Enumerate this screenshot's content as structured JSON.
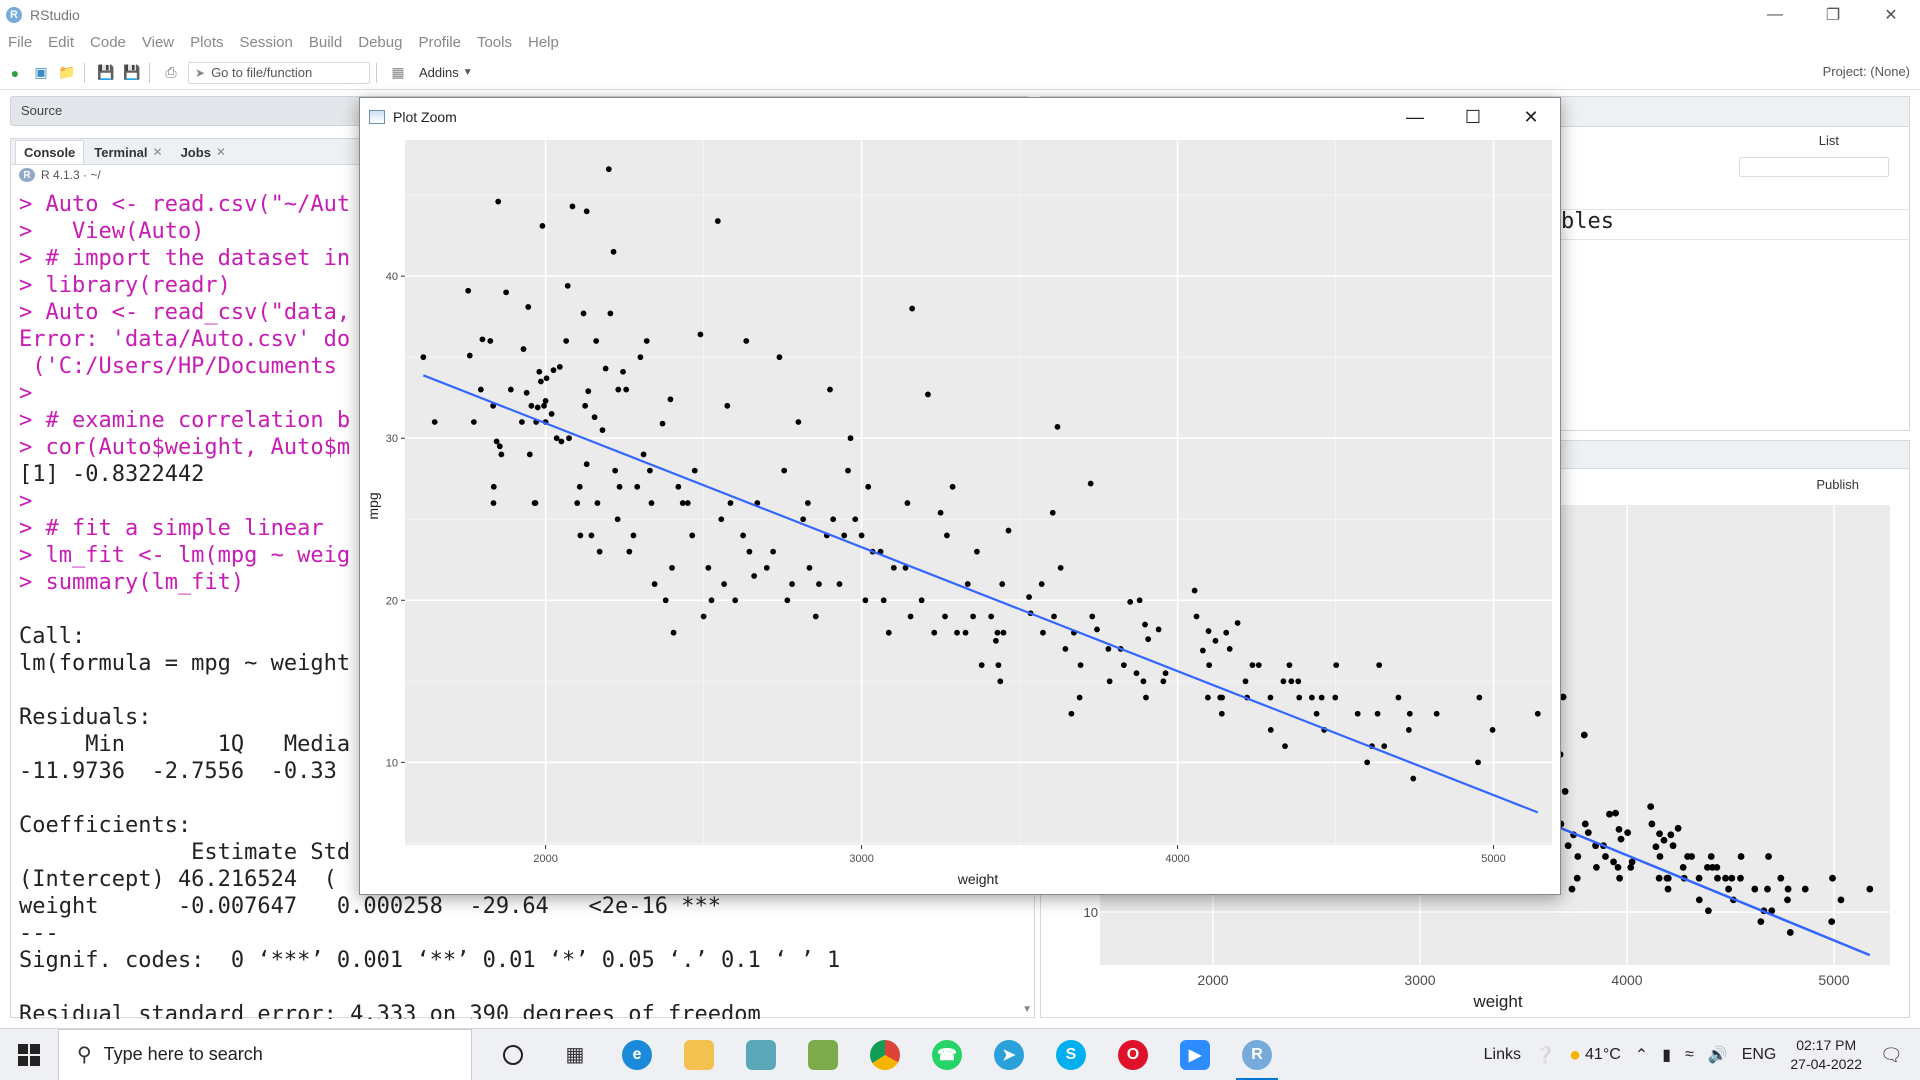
{
  "app": {
    "title": "RStudio",
    "logo_letter": "R"
  },
  "menu": [
    "File",
    "Edit",
    "Code",
    "View",
    "Plots",
    "Session",
    "Build",
    "Debug",
    "Profile",
    "Tools",
    "Help"
  ],
  "toolbar": {
    "goto_placeholder": "Go to file/function",
    "addins_label": "Addins",
    "project_label": "Project: (None)"
  },
  "source_pane": {
    "title": "Source"
  },
  "console_pane": {
    "tabs": [
      {
        "label": "Console",
        "closable": false
      },
      {
        "label": "Terminal",
        "closable": true
      },
      {
        "label": "Jobs",
        "closable": true
      }
    ],
    "r_version": "R 4.1.3 · ~/",
    "lines": [
      {
        "t": "cmd",
        "text": "> Auto <- read.csv(\"~/Aut"
      },
      {
        "t": "cmd",
        "text": ">   View(Auto)"
      },
      {
        "t": "cmd",
        "text": "> # import the dataset in"
      },
      {
        "t": "cmd",
        "text": "> library(readr)"
      },
      {
        "t": "cmd",
        "text": "> Auto <- read_csv(\"data,"
      },
      {
        "t": "err",
        "text": "Error: 'data/Auto.csv' do"
      },
      {
        "t": "err",
        "text": " ('C:/Users/HP/Documents"
      },
      {
        "t": "cmd",
        "text": ">"
      },
      {
        "t": "cmd",
        "text": "> # examine correlation b"
      },
      {
        "t": "cmd",
        "text": "> cor(Auto$weight, Auto$m"
      },
      {
        "t": "out",
        "text": "[1] -0.8322442"
      },
      {
        "t": "cmd",
        "text": ">"
      },
      {
        "t": "cmd",
        "text": "> # fit a simple linear"
      },
      {
        "t": "cmd",
        "text": "> lm_fit <- lm(mpg ~ weig"
      },
      {
        "t": "cmd",
        "text": "> summary(lm_fit)"
      },
      {
        "t": "out",
        "text": ""
      },
      {
        "t": "out",
        "text": "Call:"
      },
      {
        "t": "out",
        "text": "lm(formula = mpg ~ weight"
      },
      {
        "t": "out",
        "text": ""
      },
      {
        "t": "out",
        "text": "Residuals:"
      },
      {
        "t": "out",
        "text": "     Min       1Q   Media"
      },
      {
        "t": "out",
        "text": "-11.9736  -2.7556  -0.33"
      },
      {
        "t": "out",
        "text": ""
      },
      {
        "t": "out",
        "text": "Coefficients:"
      },
      {
        "t": "out",
        "text": "             Estimate Std"
      },
      {
        "t": "out",
        "text": "(Intercept) 46.216524  ("
      },
      {
        "t": "out",
        "text": "weight      -0.007647   0.000258  -29.64   <2e-16 ***"
      },
      {
        "t": "out",
        "text": "---"
      },
      {
        "t": "out",
        "text": "Signif. codes:  0 ‘***’ 0.001 ‘**’ 0.01 ‘*’ 0.05 ‘.’ 0.1 ‘ ’ 1"
      },
      {
        "t": "out",
        "text": ""
      },
      {
        "t": "out",
        "text": "Residual standard error: 4.333 on 390 degrees of freedom"
      }
    ]
  },
  "environment_pane": {
    "list_label": "List",
    "partial_text": "bles"
  },
  "plots_pane": {
    "publish_label": "Publish"
  },
  "plot_zoom": {
    "window_title": "Plot Zoom",
    "chart_data": {
      "type": "scatter",
      "title": "",
      "xlabel": "weight",
      "ylabel": "mpg",
      "xlim": [
        1555,
        5185
      ],
      "ylim": [
        4.9,
        48.4
      ],
      "xticks": [
        2000,
        3000,
        4000,
        5000
      ],
      "yticks": [
        10,
        20,
        30,
        40
      ],
      "grid": true,
      "background": "#ebebeb",
      "point_color": "#000000",
      "line_color": "#3366ff",
      "regression_line": {
        "intercept": 46.216524,
        "slope": -0.007647,
        "x_from": 1613,
        "x_to": 5140
      },
      "points": [
        [
          1613,
          35
        ],
        [
          1649,
          31
        ],
        [
          1755,
          39.1
        ],
        [
          1760,
          35.1
        ],
        [
          1773,
          31
        ],
        [
          1795,
          33
        ],
        [
          1800,
          36.1
        ],
        [
          1825,
          36
        ],
        [
          1834,
          32
        ],
        [
          1835,
          26
        ],
        [
          1836,
          27
        ],
        [
          1845,
          29.8
        ],
        [
          1850,
          44.6
        ],
        [
          1855,
          29.5
        ],
        [
          1860,
          29
        ],
        [
          1875,
          39
        ],
        [
          1890,
          33
        ],
        [
          1925,
          31
        ],
        [
          1930,
          35.5
        ],
        [
          1940,
          32.8
        ],
        [
          1945,
          38.1
        ],
        [
          1950,
          29
        ],
        [
          1955,
          32
        ],
        [
          1965,
          26
        ],
        [
          1968,
          26
        ],
        [
          1970,
          31
        ],
        [
          1975,
          31.9
        ],
        [
          1980,
          34.1
        ],
        [
          1985,
          33.5
        ],
        [
          1990,
          43.1
        ],
        [
          1995,
          32
        ],
        [
          2000,
          31
        ],
        [
          2000,
          32.3
        ],
        [
          2003,
          33.7
        ],
        [
          2019,
          31.5
        ],
        [
          2025,
          34.2
        ],
        [
          2035,
          30
        ],
        [
          2045,
          34.4
        ],
        [
          2050,
          29.8
        ],
        [
          2065,
          36
        ],
        [
          2070,
          39.4
        ],
        [
          2074,
          30
        ],
        [
          2085,
          44.3
        ],
        [
          2100,
          26
        ],
        [
          2108,
          27
        ],
        [
          2110,
          24
        ],
        [
          2120,
          37.7
        ],
        [
          2125,
          32
        ],
        [
          2130,
          28.4
        ],
        [
          2130,
          44
        ],
        [
          2135,
          32.9
        ],
        [
          2145,
          24
        ],
        [
          2155,
          31.3
        ],
        [
          2160,
          36
        ],
        [
          2164,
          26
        ],
        [
          2171,
          23
        ],
        [
          2180,
          30.5
        ],
        [
          2190,
          34.3
        ],
        [
          2200,
          46.6
        ],
        [
          2205,
          37.7
        ],
        [
          2215,
          41.5
        ],
        [
          2220,
          28
        ],
        [
          2228,
          25
        ],
        [
          2230,
          33
        ],
        [
          2234,
          27
        ],
        [
          2245,
          34.1
        ],
        [
          2255,
          33
        ],
        [
          2265,
          23
        ],
        [
          2278,
          24
        ],
        [
          2290,
          27
        ],
        [
          2300,
          35
        ],
        [
          2310,
          29
        ],
        [
          2320,
          36
        ],
        [
          2330,
          28
        ],
        [
          2335,
          26
        ],
        [
          2345,
          21
        ],
        [
          2370,
          30.9
        ],
        [
          2380,
          20
        ],
        [
          2395,
          32.4
        ],
        [
          2400,
          22
        ],
        [
          2405,
          18
        ],
        [
          2420,
          27
        ],
        [
          2434,
          26
        ],
        [
          2450,
          26
        ],
        [
          2464,
          24
        ],
        [
          2472,
          28
        ],
        [
          2490,
          36.4
        ],
        [
          2500,
          19
        ],
        [
          2515,
          22
        ],
        [
          2525,
          20
        ],
        [
          2545,
          43.4
        ],
        [
          2556,
          25
        ],
        [
          2565,
          21
        ],
        [
          2575,
          32
        ],
        [
          2585,
          26
        ],
        [
          2600,
          20
        ],
        [
          2625,
          24
        ],
        [
          2635,
          36
        ],
        [
          2645,
          23
        ],
        [
          2660,
          21.5
        ],
        [
          2670,
          26
        ],
        [
          2700,
          22
        ],
        [
          2720,
          23
        ],
        [
          2740,
          35
        ],
        [
          2755,
          28
        ],
        [
          2765,
          20
        ],
        [
          2780,
          21
        ],
        [
          2800,
          31
        ],
        [
          2815,
          25
        ],
        [
          2830,
          26
        ],
        [
          2835,
          22
        ],
        [
          2855,
          19
        ],
        [
          2865,
          21
        ],
        [
          2890,
          24
        ],
        [
          2900,
          33
        ],
        [
          2910,
          25
        ],
        [
          2930,
          21
        ],
        [
          2945,
          24
        ],
        [
          2957,
          28
        ],
        [
          2965,
          30
        ],
        [
          2980,
          25
        ],
        [
          3000,
          24
        ],
        [
          3012,
          20
        ],
        [
          3021,
          27
        ],
        [
          3035,
          23
        ],
        [
          3060,
          23
        ],
        [
          3070,
          20
        ],
        [
          3086,
          18
        ],
        [
          3102,
          22
        ],
        [
          3139,
          22
        ],
        [
          3145,
          26
        ],
        [
          3155,
          19
        ],
        [
          3160,
          38
        ],
        [
          3190,
          20
        ],
        [
          3210,
          32.7
        ],
        [
          3230,
          18
        ],
        [
          3250,
          25.4
        ],
        [
          3264,
          19
        ],
        [
          3270,
          24
        ],
        [
          3288,
          27
        ],
        [
          3302,
          18
        ],
        [
          3329,
          18
        ],
        [
          3336,
          21
        ],
        [
          3353,
          19
        ],
        [
          3365,
          23
        ],
        [
          3380,
          16
        ],
        [
          3410,
          19
        ],
        [
          3425,
          17.5
        ],
        [
          3430,
          18
        ],
        [
          3433,
          16
        ],
        [
          3439,
          15
        ],
        [
          3445,
          21
        ],
        [
          3449,
          18
        ],
        [
          3465,
          24.3
        ],
        [
          3530,
          20.2
        ],
        [
          3535,
          19.2
        ],
        [
          3570,
          21
        ],
        [
          3574,
          18
        ],
        [
          3605,
          25.4
        ],
        [
          3609,
          19
        ],
        [
          3620,
          30.7
        ],
        [
          3630,
          22
        ],
        [
          3645,
          17
        ],
        [
          3664,
          13
        ],
        [
          3672,
          18
        ],
        [
          3690,
          14
        ],
        [
          3693,
          16
        ],
        [
          3725,
          27.2
        ],
        [
          3730,
          19
        ],
        [
          3745,
          18.2
        ],
        [
          3781,
          17
        ],
        [
          3785,
          15
        ],
        [
          3820,
          17
        ],
        [
          3830,
          16
        ],
        [
          3850,
          19.9
        ],
        [
          3870,
          15.5
        ],
        [
          3880,
          20
        ],
        [
          3892,
          15
        ],
        [
          3897,
          18.5
        ],
        [
          3900,
          14
        ],
        [
          3907,
          17.6
        ],
        [
          3940,
          18.2
        ],
        [
          3955,
          15
        ],
        [
          3962,
          15.5
        ],
        [
          4054,
          20.6
        ],
        [
          4060,
          19
        ],
        [
          4080,
          16.9
        ],
        [
          4096,
          14
        ],
        [
          4098,
          18.1
        ],
        [
          4100,
          16
        ],
        [
          4120,
          17.5
        ],
        [
          4135,
          14
        ],
        [
          4140,
          13
        ],
        [
          4141,
          14
        ],
        [
          4154,
          18
        ],
        [
          4165,
          17
        ],
        [
          4190,
          18.6
        ],
        [
          4215,
          15
        ],
        [
          4220,
          14
        ],
        [
          4237,
          16
        ],
        [
          4257,
          16
        ],
        [
          4294,
          14
        ],
        [
          4295,
          12
        ],
        [
          4335,
          15
        ],
        [
          4340,
          11
        ],
        [
          4354,
          16
        ],
        [
          4360,
          15
        ],
        [
          4382,
          15
        ],
        [
          4385,
          14
        ],
        [
          4425,
          14
        ],
        [
          4440,
          13
        ],
        [
          4456,
          14
        ],
        [
          4464,
          12
        ],
        [
          4499,
          14
        ],
        [
          4502,
          16
        ],
        [
          4570,
          13
        ],
        [
          4600,
          10
        ],
        [
          4615,
          11
        ],
        [
          4633,
          13
        ],
        [
          4638,
          16
        ],
        [
          4654,
          11
        ],
        [
          4699,
          14
        ],
        [
          4732,
          12
        ],
        [
          4735,
          13
        ],
        [
          4746,
          9
        ],
        [
          4820,
          13
        ],
        [
          4951,
          10
        ],
        [
          4955,
          14
        ],
        [
          4997,
          12
        ],
        [
          5140,
          13
        ]
      ]
    }
  },
  "background_plot": {
    "xticks": [
      2000,
      3000,
      4000,
      5000
    ],
    "ytick": "10",
    "xlabel": "weight"
  },
  "taskbar": {
    "search_placeholder": "Type here to search",
    "links_label": "Links",
    "weather": "41°C",
    "lang": "ENG",
    "time": "02:17 PM",
    "date": "27-04-2022"
  }
}
